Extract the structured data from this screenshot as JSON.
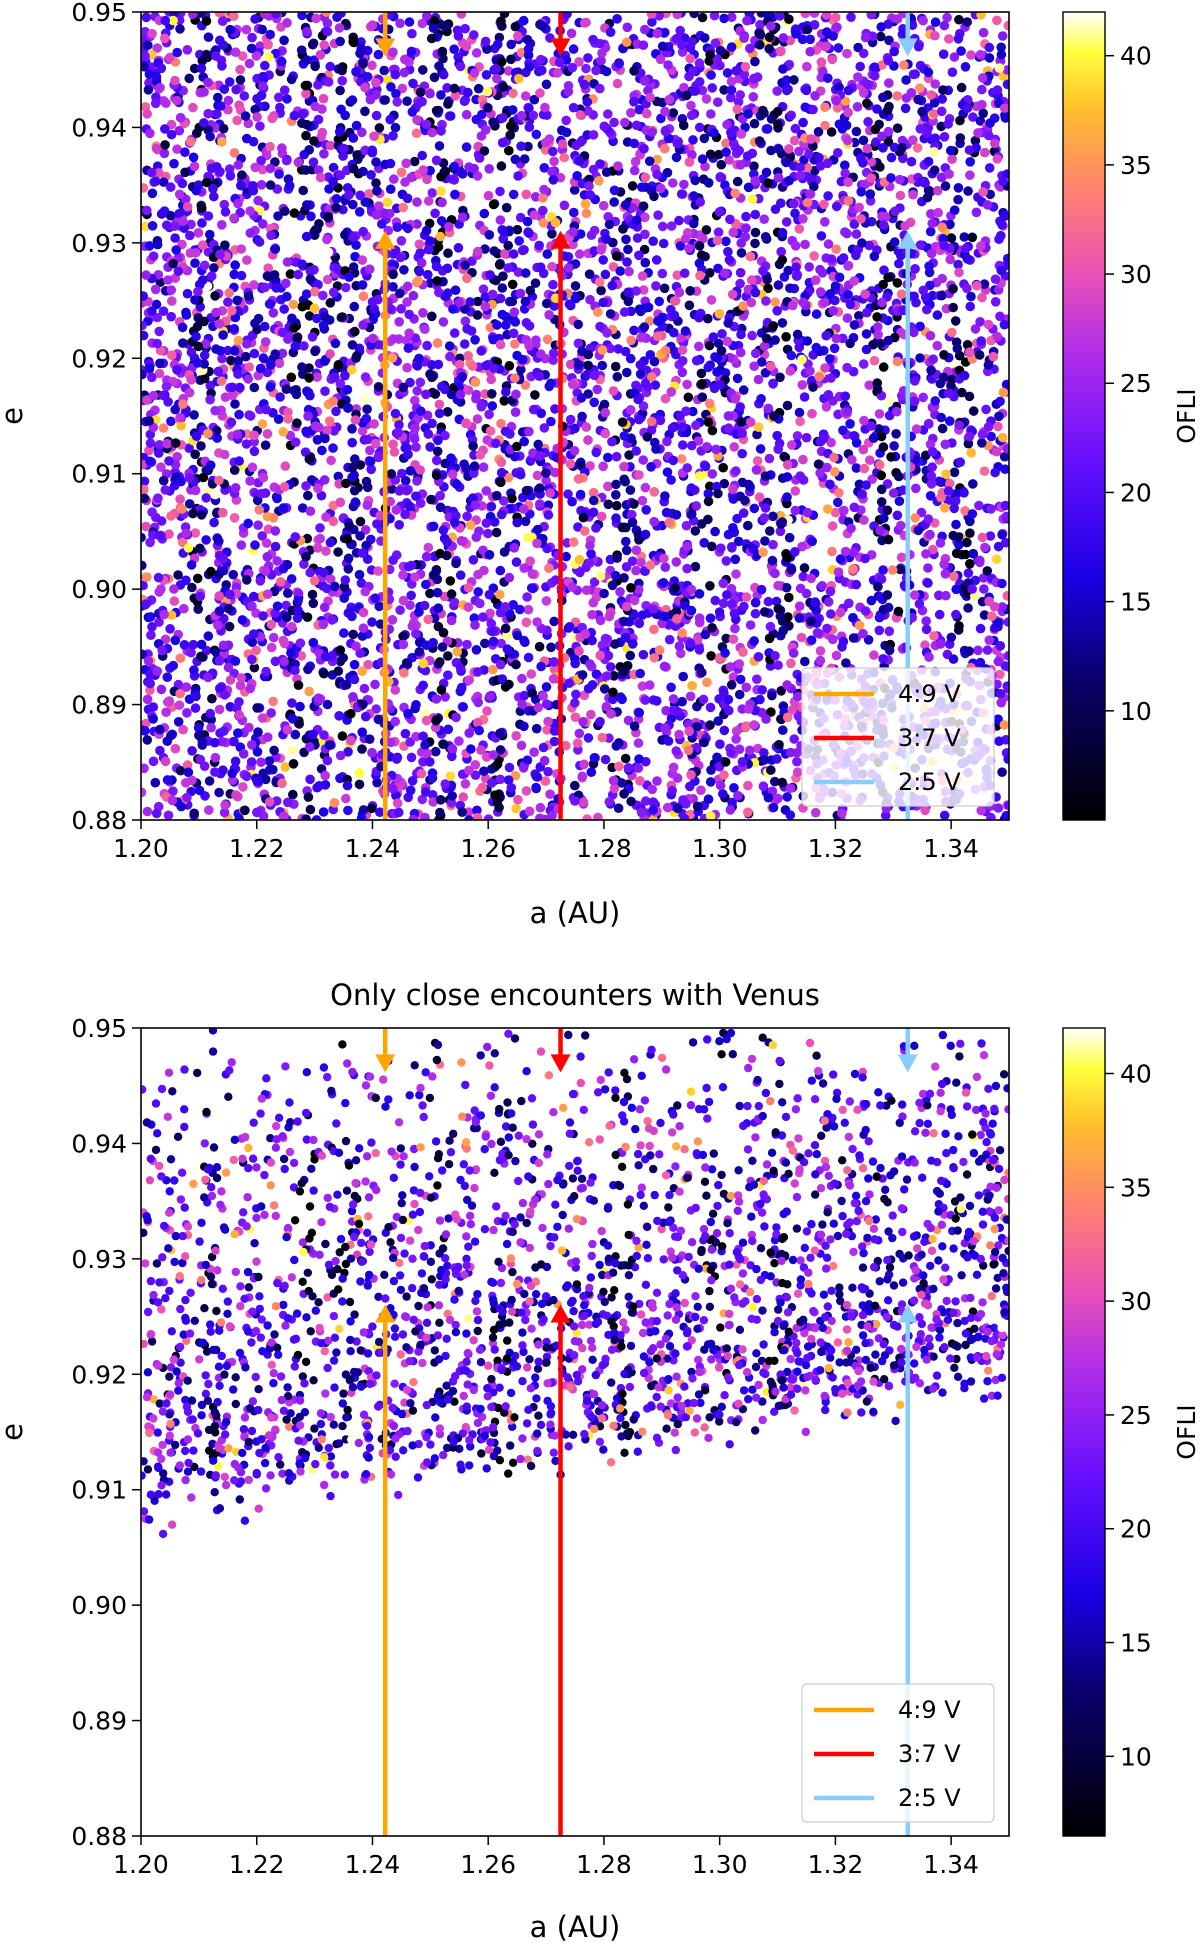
{
  "chart_data": [
    {
      "type": "scatter",
      "title": "",
      "xlabel": "a (AU)",
      "ylabel": "e",
      "xlim": [
        1.2,
        1.35
      ],
      "ylim": [
        0.88,
        0.95
      ],
      "xticks": [
        "1.20",
        "1.22",
        "1.24",
        "1.26",
        "1.28",
        "1.30",
        "1.32",
        "1.34"
      ],
      "yticks": [
        "0.88",
        "0.89",
        "0.90",
        "0.91",
        "0.92",
        "0.93",
        "0.94",
        "0.95"
      ],
      "colorbar": {
        "label": "OFLI",
        "range": [
          5,
          42
        ],
        "ticks": [
          "10",
          "15",
          "20",
          "25",
          "30",
          "35",
          "40"
        ],
        "colormap": "gnuplot2"
      },
      "scatter_description": "dense uniform sampling over whole panel, color = OFLI",
      "resonances": [
        {
          "name": "4:9 V",
          "a": 1.2422,
          "color": "#ffa500",
          "arrow_top": 0.9465,
          "arrow_bottom": 0.9307
        },
        {
          "name": "3:7 V",
          "a": 1.2725,
          "color": "#ff0000",
          "arrow_top": 0.9465,
          "arrow_bottom": 0.9307
        },
        {
          "name": "2:5 V",
          "a": 1.3325,
          "color": "#87cefa",
          "arrow_top": 0.9465,
          "arrow_bottom": 0.9307
        }
      ],
      "legend_position": "lower-right",
      "points_count": 7000
    },
    {
      "type": "scatter",
      "title": "Only close encounters with Venus",
      "xlabel": "a (AU)",
      "ylabel": "e",
      "xlim": [
        1.2,
        1.35
      ],
      "ylim": [
        0.88,
        0.95
      ],
      "xticks": [
        "1.20",
        "1.22",
        "1.24",
        "1.26",
        "1.28",
        "1.30",
        "1.32",
        "1.34"
      ],
      "yticks": [
        "0.88",
        "0.89",
        "0.90",
        "0.91",
        "0.92",
        "0.93",
        "0.94",
        "0.95"
      ],
      "colorbar": {
        "label": "OFLI",
        "range": [
          6.5,
          42
        ],
        "ticks": [
          "10",
          "15",
          "20",
          "25",
          "30",
          "35",
          "40"
        ],
        "colormap": "gnuplot2"
      },
      "scatter_description": "points only above an eccentricity boundary (~0.908 at a=1.20 rising to ~0.92 near a=1.34)",
      "resonances": [
        {
          "name": "4:9 V",
          "a": 1.2422,
          "color": "#ffa500",
          "arrow_top": 0.9465,
          "arrow_bottom": 0.9257
        },
        {
          "name": "3:7 V",
          "a": 1.2725,
          "color": "#ff0000",
          "arrow_top": 0.9465,
          "arrow_bottom": 0.9257
        },
        {
          "name": "2:5 V",
          "a": 1.3325,
          "color": "#87cefa",
          "arrow_top": 0.9465,
          "arrow_bottom": 0.9257
        }
      ],
      "legend_position": "lower-right",
      "points_count": 2600
    }
  ]
}
